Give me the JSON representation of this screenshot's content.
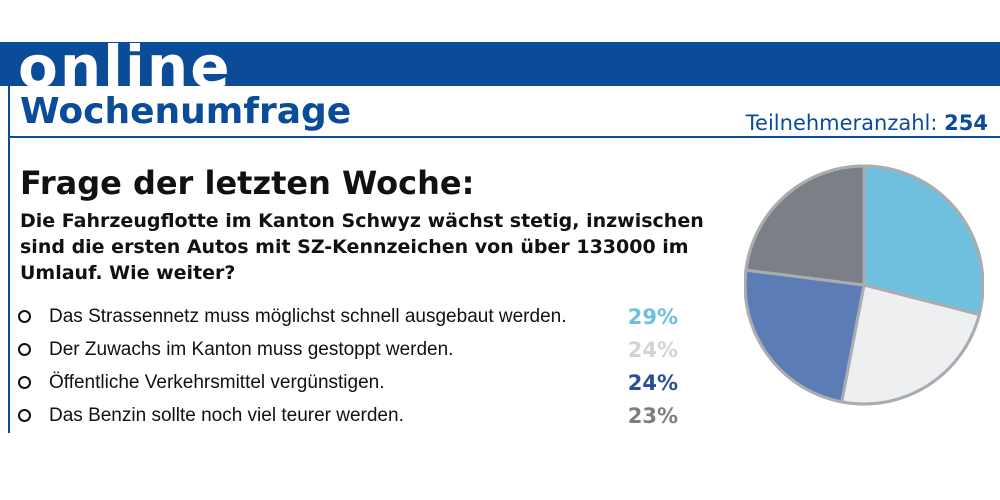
{
  "header": {
    "brand": "online",
    "title": "Wochenumfrage",
    "participants_label": "Teilnehmeranzahl:",
    "participants_count": "254"
  },
  "question": {
    "heading": "Frage der letzten Woche:",
    "text": "Die Fahrzeugflotte im Kanton Schwyz wächst stetig, inzwischen sind die ersten Autos mit SZ-Kennzeichen von über 133000 im Umlauf. Wie weiter?"
  },
  "answers": [
    {
      "label": "Das Strassennetz muss möglichst schnell ausgebaut werden.",
      "percent": "29%",
      "color": "#6fbfdf"
    },
    {
      "label": "Der Zuwachs im Kanton muss gestoppt werden.",
      "percent": "24%",
      "color": "#d3d4d7"
    },
    {
      "label": "Öffentliche Verkehrsmittel vergünstigen.",
      "percent": "24%",
      "color": "#2a4f96"
    },
    {
      "label": "Das Benzin sollte noch viel teurer werden.",
      "percent": "23%",
      "color": "#7a7f86"
    }
  ],
  "chart_data": {
    "type": "pie",
    "categories": [
      "Das Strassennetz muss möglichst schnell ausgebaut werden.",
      "Der Zuwachs im Kanton muss gestoppt werden.",
      "Öffentliche Verkehrsmittel vergünstigen.",
      "Das Benzin sollte noch viel teurer werden."
    ],
    "values": [
      29,
      24,
      24,
      23
    ],
    "colors": [
      "#6fbfdf",
      "#eeeff1",
      "#5c7cb5",
      "#7b8086"
    ],
    "edge_color": "#a9adb2"
  }
}
